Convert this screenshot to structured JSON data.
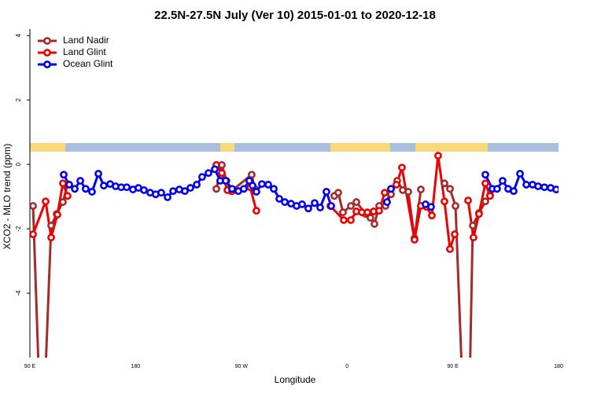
{
  "chart_data": {
    "type": "line",
    "title": "22.5N-27.5N July (Ver 10)   2015-01-01 to 2020-12-18",
    "x_label": "Longitude",
    "y_label": "XCO2 - MLO trend (ppm)",
    "xlim": [
      90,
      540
    ],
    "xticks": [
      {
        "value": 90,
        "label": "90 E"
      },
      {
        "value": 180,
        "label": "180"
      },
      {
        "value": 270,
        "label": "90 W"
      },
      {
        "value": 360,
        "label": "0"
      },
      {
        "value": 450,
        "label": "90 E"
      },
      {
        "value": 540,
        "label": "180"
      }
    ],
    "ylim": [
      -6,
      4.2
    ],
    "yticks": [
      4,
      2,
      0,
      -2,
      -4
    ],
    "legend": "top-left",
    "series": [
      {
        "name": "Land Nadir",
        "color": "#a52a2a",
        "x": [
          92.7,
          98,
          102.7,
          108.1,
          112.8,
          118.1,
          122.1,
          null,
          248.7,
          253.4,
          257.4,
          261.4,
          278.8,
          281.5,
          null,
          349.1,
          352.5,
          356.5,
          363.2,
          367.9,
          375.9,
          379.9,
          383.3,
          387.3,
          392.7,
          397.4,
          402.7,
          407.4,
          412.1,
          417.4,
          422.8,
          null,
          442.9,
          447.6,
          452.3,
          458.3,
          464.3,
          467.0,
          472.3,
          477.7,
          481.7
        ],
        "values": [
          -1.29,
          -7,
          -7,
          -1.9,
          -1.54,
          -1.17,
          -0.61,
          null,
          -0.76,
          -0.02,
          -0.51,
          -0.83,
          -0.32,
          -0.76,
          null,
          -0.98,
          -0.88,
          -1.49,
          -1.29,
          -1.17,
          -1.54,
          -1.66,
          -1.85,
          -1.29,
          -1.29,
          -0.93,
          -0.51,
          -0.8,
          -0.85,
          -2.29,
          -0.78,
          null,
          -0.59,
          -0.76,
          -1.29,
          -7,
          -7,
          -1.9,
          -1.51,
          -1.15,
          -0.95
        ]
      },
      {
        "name": "Land Glint",
        "color": "#ee0000",
        "x": [
          92.7,
          103.4,
          108.1,
          113.4,
          118.1,
          122.1,
          null,
          248.7,
          253.4,
          258.1,
          262.1,
          277.5,
          282.8,
          null,
          345.8,
          357.2,
          363.2,
          367.9,
          372.6,
          377.3,
          382.6,
          387.3,
          392.0,
          397.4,
          402.0,
          406.7,
          417.4,
          422.8,
          427.5,
          432.2,
          437.5,
          442.9,
          447.6,
          451.6,
          null,
          463.0,
          467.6,
          472.3,
          477.7,
          481.7
        ],
        "values": [
          -2.17,
          -1.15,
          -2.27,
          -1.56,
          -0.59,
          -0.98,
          null,
          -0.02,
          -0.27,
          -0.8,
          -0.83,
          -0.71,
          -1.44,
          null,
          -1.29,
          -1.73,
          -1.73,
          -1.46,
          -1.49,
          -1.49,
          -1.46,
          -1.44,
          -0.88,
          -0.76,
          -0.63,
          -0.1,
          -2.34,
          -1.29,
          -1.32,
          -1.59,
          0.27,
          -1.15,
          -2.63,
          -2.17,
          null,
          -1.12,
          -2.27,
          -1.54,
          -0.59,
          -0.98
        ]
      },
      {
        "name": "Ocean Glint",
        "color": "#0000ee",
        "x": [
          118.8,
          123.5,
          128.2,
          132.9,
          137.5,
          142.9,
          148.3,
          152.9,
          158.3,
          163.0,
          167.7,
          172.4,
          177.7,
          182.4,
          187.1,
          192.4,
          197.1,
          201.8,
          207.2,
          211.9,
          217.2,
          221.9,
          226.6,
          232.0,
          236.6,
          242.0,
          247.4,
          252.0,
          256.7,
          262.1,
          267.4,
          272.1,
          276.8,
          279.5,
          282.8,
          287.5,
          292.9,
          297.6,
          302.3,
          307.0,
          312.3,
          317.0,
          321.7,
          327.0,
          332.4,
          337.1,
          342.4,
          346.5,
          null,
          394.0,
          397.4,
          null,
          426.8,
          431.5,
          null,
          477.7,
          483.7,
          487.7,
          492.4,
          497.1,
          501.8,
          507.2,
          512.6,
          517.9,
          522.6,
          528.0,
          533.3,
          538.0
        ],
        "values": [
          -0.32,
          -0.63,
          -0.76,
          -0.51,
          -0.76,
          -0.85,
          -0.29,
          -0.66,
          -0.61,
          -0.68,
          -0.71,
          -0.71,
          -0.78,
          -0.73,
          -0.8,
          -0.88,
          -0.93,
          -0.88,
          -1.02,
          -0.83,
          -0.78,
          -0.83,
          -0.73,
          -0.63,
          -0.39,
          -0.27,
          -0.15,
          -0.51,
          -0.51,
          -0.76,
          -0.83,
          -0.76,
          -0.51,
          -0.66,
          -0.85,
          -0.61,
          -0.63,
          -0.76,
          -1.07,
          -1.17,
          -1.22,
          -1.29,
          -1.24,
          -1.37,
          -1.2,
          -1.34,
          -0.85,
          -1.29,
          null,
          -1.17,
          -0.76,
          null,
          -1.24,
          -1.32,
          null,
          -0.32,
          -0.76,
          -0.76,
          -0.51,
          -0.76,
          -0.83,
          -0.29,
          -0.63,
          -0.63,
          -0.68,
          -0.71,
          -0.73,
          -0.78
        ]
      }
    ]
  }
}
